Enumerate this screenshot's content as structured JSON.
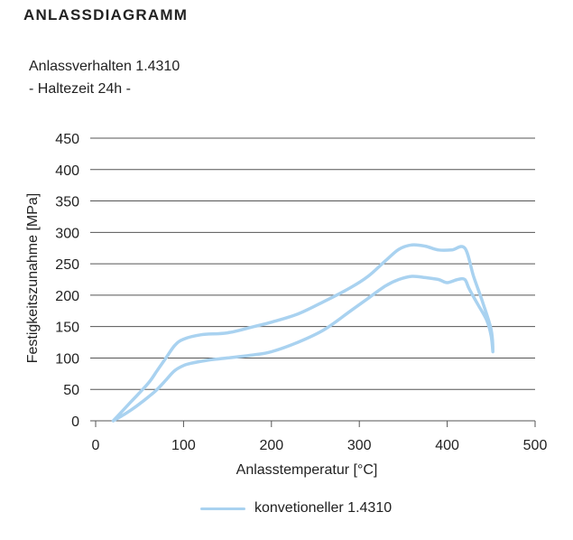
{
  "heading": "ANLASSDIAGRAMM",
  "subtitle": {
    "line1": "Anlassverhalten 1.4310",
    "line2": "- Haltezeit 24h -"
  },
  "colors": {
    "series": "#a9d2f0",
    "grid": "#555555",
    "text": "#222222"
  },
  "chart_data": {
    "type": "line",
    "title": "Anlassverhalten 1.4310 - Haltezeit 24h -",
    "xlabel": "Anlasstemperatur [°C]",
    "ylabel": "Festigkeitszunahme [MPa]",
    "xlim": [
      0,
      500
    ],
    "ylim": [
      0,
      450
    ],
    "x_ticks": [
      0,
      100,
      200,
      300,
      400,
      500
    ],
    "y_ticks": [
      0,
      50,
      100,
      150,
      200,
      250,
      300,
      350,
      400,
      450
    ],
    "grid": "horizontal",
    "legend": "bottom-center",
    "series": [
      {
        "name": "konvetioneller 1.4310",
        "x": [
          20,
          40,
          60,
          70,
          80,
          90,
          100,
          120,
          150,
          180,
          200,
          230,
          260,
          290,
          310,
          330,
          345,
          360,
          375,
          390,
          405,
          420,
          430,
          440,
          450,
          452,
          450,
          445,
          435,
          425,
          420,
          412,
          400,
          390,
          375,
          360,
          345,
          330,
          310,
          290,
          260,
          230,
          200,
          180,
          150,
          130,
          110,
          100,
          90,
          80,
          70,
          60,
          50,
          40,
          30,
          20
        ],
        "y": [
          0,
          30,
          60,
          80,
          100,
          120,
          130,
          137,
          140,
          150,
          157,
          170,
          190,
          212,
          230,
          255,
          273,
          280,
          278,
          272,
          272,
          275,
          230,
          190,
          145,
          110,
          135,
          160,
          185,
          210,
          225,
          225,
          220,
          225,
          228,
          230,
          225,
          215,
          195,
          175,
          145,
          125,
          110,
          105,
          100,
          97,
          92,
          88,
          80,
          65,
          50,
          38,
          27,
          17,
          8,
          0
        ]
      }
    ]
  }
}
